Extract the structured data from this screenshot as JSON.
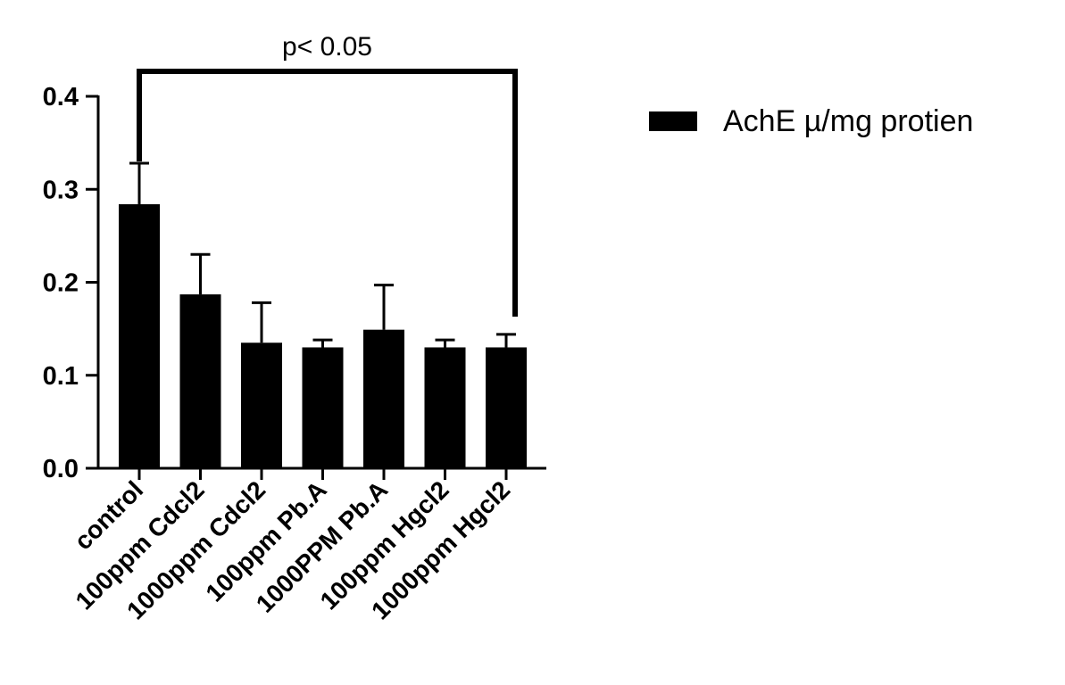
{
  "chart_data": {
    "type": "bar",
    "title": "",
    "xlabel": "",
    "ylabel": "",
    "categories": [
      "control",
      "100ppm Cdcl2",
      "1000ppm Cdcl2",
      "100ppm Pb.A",
      "1000PPM Pb.A",
      "100ppm Hgcl2",
      "1000ppm Hgcl2"
    ],
    "series": [
      {
        "name": "AchE µ/mg protien",
        "color": "#000000",
        "values": [
          0.284,
          0.187,
          0.135,
          0.13,
          0.149,
          0.13,
          0.13
        ],
        "error_upper": [
          0.044,
          0.043,
          0.043,
          0.008,
          0.048,
          0.008,
          0.014
        ]
      }
    ],
    "ylim": [
      0,
      0.4
    ],
    "y_ticks": [
      "0.0",
      "0.1",
      "0.2",
      "0.3",
      "0.4"
    ],
    "legend": "right",
    "grid": false,
    "annotation": {
      "text": "p< 0.05",
      "from_category": "control",
      "to_category": "1000ppm Hgcl2",
      "bracket_value": 0.43
    }
  }
}
